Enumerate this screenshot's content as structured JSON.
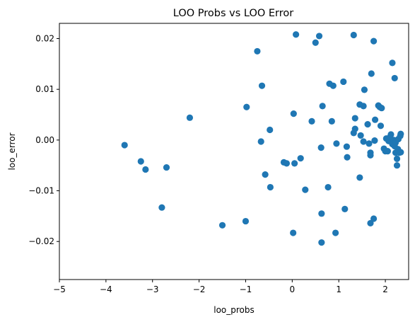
{
  "chart_data": {
    "type": "scatter",
    "title": "LOO Probs vs LOO Error",
    "xlabel": "loo_probs",
    "ylabel": "loo_error",
    "xlim": [
      -5,
      2.5
    ],
    "ylim": [
      -0.0275,
      0.023
    ],
    "xticks": [
      -5,
      -4,
      -3,
      -2,
      -1,
      0,
      1,
      2
    ],
    "xtick_labels": [
      "−5",
      "−4",
      "−3",
      "−2",
      "−1",
      "0",
      "1",
      "2"
    ],
    "yticks": [
      -0.02,
      -0.01,
      0.0,
      0.01,
      0.02
    ],
    "ytick_labels": [
      "−0.02",
      "−0.01",
      "0.00",
      "0.01",
      "0.02"
    ],
    "grid": false,
    "marker_color": "#1f77b4",
    "points": [
      [
        -3.6,
        -0.001
      ],
      [
        -3.25,
        -0.0042
      ],
      [
        -3.15,
        -0.0058
      ],
      [
        -2.7,
        -0.0054
      ],
      [
        -2.8,
        -0.0133
      ],
      [
        -2.2,
        0.0044
      ],
      [
        -1.5,
        -0.0168
      ],
      [
        -1.0,
        -0.016
      ],
      [
        -0.98,
        0.0065
      ],
      [
        -0.75,
        0.0175
      ],
      [
        -0.65,
        0.0107
      ],
      [
        -0.67,
        -0.0003
      ],
      [
        -0.58,
        -0.0068
      ],
      [
        -0.48,
        0.002
      ],
      [
        -0.47,
        -0.0093
      ],
      [
        -0.18,
        -0.0044
      ],
      [
        -0.12,
        -0.0046
      ],
      [
        0.03,
        0.0052
      ],
      [
        0.02,
        -0.0183
      ],
      [
        0.05,
        -0.0046
      ],
      [
        0.08,
        0.0208
      ],
      [
        0.18,
        -0.0036
      ],
      [
        0.28,
        -0.0098
      ],
      [
        0.42,
        0.0037
      ],
      [
        0.5,
        0.0192
      ],
      [
        0.58,
        0.0205
      ],
      [
        0.62,
        -0.0015
      ],
      [
        0.65,
        0.0067
      ],
      [
        0.63,
        -0.0145
      ],
      [
        0.63,
        -0.0202
      ],
      [
        0.77,
        -0.0093
      ],
      [
        0.8,
        0.0111
      ],
      [
        0.85,
        0.0037
      ],
      [
        0.88,
        0.0107
      ],
      [
        0.95,
        -0.0007
      ],
      [
        0.93,
        -0.0183
      ],
      [
        1.1,
        0.0115
      ],
      [
        1.13,
        -0.0136
      ],
      [
        1.17,
        -0.0013
      ],
      [
        1.18,
        -0.0034
      ],
      [
        1.32,
        0.0207
      ],
      [
        1.32,
        0.0014
      ],
      [
        1.35,
        0.0022
      ],
      [
        1.35,
        0.0043
      ],
      [
        1.45,
        0.007
      ],
      [
        1.47,
        0.0009
      ],
      [
        1.45,
        -0.0074
      ],
      [
        1.53,
        0.0067
      ],
      [
        1.53,
        -0.0003
      ],
      [
        1.55,
        0.0099
      ],
      [
        1.62,
        0.0031
      ],
      [
        1.65,
        -0.0007
      ],
      [
        1.68,
        -0.0025
      ],
      [
        1.68,
        -0.003
      ],
      [
        1.7,
        0.0131
      ],
      [
        1.68,
        -0.0164
      ],
      [
        1.75,
        0.0195
      ],
      [
        1.75,
        -0.0155
      ],
      [
        1.77,
        -0.0001
      ],
      [
        1.78,
        0.004
      ],
      [
        1.85,
        0.0068
      ],
      [
        1.88,
        0.0065
      ],
      [
        1.9,
        0.0028
      ],
      [
        1.92,
        0.0063
      ],
      [
        1.97,
        -0.0017
      ],
      [
        2.0,
        -0.0022
      ],
      [
        2.02,
        0.0003
      ],
      [
        2.05,
        -0.0022
      ],
      [
        2.07,
        -0.0002
      ],
      [
        2.1,
        0.0006
      ],
      [
        2.12,
        0.0011
      ],
      [
        2.15,
        -0.0008
      ],
      [
        2.15,
        0.0152
      ],
      [
        2.18,
        0.0
      ],
      [
        2.2,
        -0.0012
      ],
      [
        2.2,
        0.0122
      ],
      [
        2.22,
        -0.0025
      ],
      [
        2.22,
        -0.0005
      ],
      [
        2.25,
        -0.0037
      ],
      [
        2.25,
        -0.005
      ],
      [
        2.27,
        -0.0018
      ],
      [
        2.28,
        0.0002
      ],
      [
        2.3,
        -0.0025
      ],
      [
        2.32,
        0.0008
      ],
      [
        2.33,
        0.0012
      ],
      [
        2.33,
        -0.0024
      ]
    ]
  }
}
